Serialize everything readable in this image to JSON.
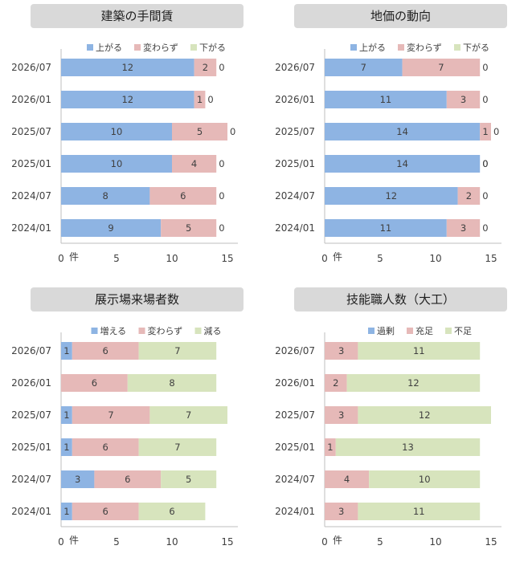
{
  "chart_data": [
    {
      "type": "bar",
      "orientation": "horizontal",
      "stacked": true,
      "title": "建築の手間賃",
      "categories": [
        "2026/07",
        "2026/01",
        "2025/07",
        "2025/01",
        "2024/07",
        "2024/01"
      ],
      "series": [
        {
          "name": "上がる",
          "color": "#8eb4e3",
          "values": [
            12,
            12,
            10,
            10,
            8,
            9
          ]
        },
        {
          "name": "変わらず",
          "color": "#e6b9b8",
          "values": [
            2,
            1,
            5,
            4,
            6,
            5
          ]
        },
        {
          "name": "下がる",
          "color": "#d7e4bd",
          "values": [
            0,
            0,
            0,
            0,
            0,
            0
          ]
        }
      ],
      "xlim": [
        0,
        15
      ],
      "xticks": [
        "0",
        "5",
        "10",
        "15"
      ],
      "xunit": "件",
      "legend_position": "top"
    },
    {
      "type": "bar",
      "orientation": "horizontal",
      "stacked": true,
      "title": "地価の動向",
      "categories": [
        "2026/07",
        "2026/01",
        "2025/07",
        "2025/01",
        "2024/07",
        "2024/01"
      ],
      "series": [
        {
          "name": "上がる",
          "color": "#8eb4e3",
          "values": [
            7,
            11,
            14,
            14,
            12,
            11
          ]
        },
        {
          "name": "変わらず",
          "color": "#e6b9b8",
          "values": [
            7,
            3,
            1,
            0,
            2,
            3
          ]
        },
        {
          "name": "下がる",
          "color": "#d7e4bd",
          "values": [
            0,
            0,
            0,
            0,
            0,
            0
          ]
        }
      ],
      "xlim": [
        0,
        15
      ],
      "xticks": [
        "0",
        "5",
        "10",
        "15"
      ],
      "xunit": "件",
      "legend_position": "top"
    },
    {
      "type": "bar",
      "orientation": "horizontal",
      "stacked": true,
      "title": "展示場来場者数",
      "categories": [
        "2026/07",
        "2026/01",
        "2025/07",
        "2025/01",
        "2024/07",
        "2024/01"
      ],
      "series": [
        {
          "name": "増える",
          "color": "#8eb4e3",
          "values": [
            1,
            0,
            1,
            1,
            3,
            1
          ]
        },
        {
          "name": "変わらず",
          "color": "#e6b9b8",
          "values": [
            6,
            6,
            7,
            6,
            6,
            6
          ]
        },
        {
          "name": "減る",
          "color": "#d7e4bd",
          "values": [
            7,
            8,
            7,
            7,
            5,
            6
          ]
        }
      ],
      "xlim": [
        0,
        15
      ],
      "xticks": [
        "0",
        "5",
        "10",
        "15"
      ],
      "xunit": "件",
      "legend_position": "top"
    },
    {
      "type": "bar",
      "orientation": "horizontal",
      "stacked": true,
      "title": "技能職人数（大工）",
      "categories": [
        "2026/07",
        "2026/01",
        "2025/07",
        "2025/01",
        "2024/07",
        "2024/01"
      ],
      "series": [
        {
          "name": "過剰",
          "color": "#8eb4e3",
          "values": [
            0,
            0,
            0,
            0,
            0,
            0
          ]
        },
        {
          "name": "充足",
          "color": "#e6b9b8",
          "values": [
            3,
            2,
            3,
            1,
            4,
            3
          ]
        },
        {
          "name": "不足",
          "color": "#d7e4bd",
          "values": [
            11,
            12,
            12,
            13,
            10,
            11
          ]
        }
      ],
      "xlim": [
        0,
        15
      ],
      "xticks": [
        "0",
        "5",
        "10",
        "15"
      ],
      "xunit": "件",
      "legend_position": "top"
    }
  ],
  "style": {
    "title_box_color": "#d9d9d9",
    "axis_color": "#bfbfbf",
    "text_color": "#404040"
  }
}
